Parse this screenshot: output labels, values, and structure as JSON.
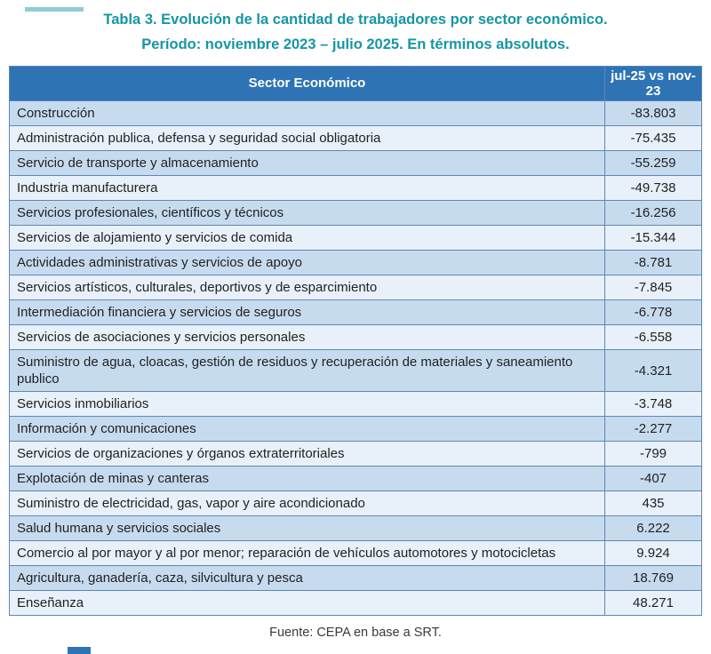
{
  "title": {
    "line1": "Tabla 3. Evolución de la cantidad de trabajadores por sector económico.",
    "line2": "Período: noviembre 2023 – julio 2025. En términos absolutos."
  },
  "table": {
    "header": {
      "sector": "Sector Económico",
      "value": "jul-25 vs nov-23"
    },
    "rows": [
      {
        "sector": "Construcción",
        "value": "-83.803"
      },
      {
        "sector": "Administración publica, defensa y seguridad social obligatoria",
        "value": "-75.435"
      },
      {
        "sector": "Servicio de transporte y almacenamiento",
        "value": "-55.259"
      },
      {
        "sector": "Industria manufacturera",
        "value": "-49.738"
      },
      {
        "sector": "Servicios profesionales, científicos y técnicos",
        "value": "-16.256"
      },
      {
        "sector": "Servicios de alojamiento y servicios de comida",
        "value": "-15.344"
      },
      {
        "sector": "Actividades administrativas y servicios de apoyo",
        "value": "-8.781"
      },
      {
        "sector": "Servicios artísticos, culturales, deportivos y de esparcimiento",
        "value": "-7.845"
      },
      {
        "sector": "Intermediación financiera y servicios de seguros",
        "value": "-6.778"
      },
      {
        "sector": "Servicios de asociaciones y servicios personales",
        "value": "-6.558"
      },
      {
        "sector": "Suministro de agua, cloacas, gestión de residuos y recuperación de materiales y saneamiento publico",
        "value": "-4.321"
      },
      {
        "sector": "Servicios inmobiliarios",
        "value": "-3.748"
      },
      {
        "sector": "Información y comunicaciones",
        "value": "-2.277"
      },
      {
        "sector": "Servicios de organizaciones y órganos extraterritoriales",
        "value": "-799"
      },
      {
        "sector": "Explotación de minas y canteras",
        "value": "-407"
      },
      {
        "sector": "Suministro de electricidad, gas, vapor y aire acondicionado",
        "value": "435"
      },
      {
        "sector": "Salud humana y servicios sociales",
        "value": "6.222"
      },
      {
        "sector": "Comercio al por mayor y al por menor; reparación de vehículos automotores y motocicletas",
        "value": "9.924"
      },
      {
        "sector": "Agricultura, ganadería, caza, silvicultura y pesca",
        "value": "18.769"
      },
      {
        "sector": "Enseñanza",
        "value": "48.271"
      }
    ]
  },
  "footer": {
    "source": "Fuente: CEPA en base a SRT."
  },
  "colors": {
    "title_text": "#1596A4",
    "header_bg": "#2E74B5",
    "header_text": "#FFFFFF",
    "band_dark": "#C7DBEF",
    "band_light": "#E8F1F9",
    "border": "#5E87B4",
    "body_text": "#222222",
    "source_text": "#3A3A3A"
  },
  "chart_data": {
    "type": "table",
    "title": "Tabla 3. Evolución de la cantidad de trabajadores por sector económico. Período: noviembre 2023 – julio 2025. En términos absolutos.",
    "columns": [
      "Sector Económico",
      "jul-25 vs nov-23"
    ],
    "rows": [
      [
        "Construcción",
        -83803
      ],
      [
        "Administración publica, defensa y seguridad social obligatoria",
        -75435
      ],
      [
        "Servicio de transporte y almacenamiento",
        -55259
      ],
      [
        "Industria manufacturera",
        -49738
      ],
      [
        "Servicios profesionales, científicos y técnicos",
        -16256
      ],
      [
        "Servicios de alojamiento y servicios de comida",
        -15344
      ],
      [
        "Actividades administrativas y servicios de apoyo",
        -8781
      ],
      [
        "Servicios artísticos, culturales, deportivos y de esparcimiento",
        -7845
      ],
      [
        "Intermediación financiera y servicios de seguros",
        -6778
      ],
      [
        "Servicios de asociaciones y servicios personales",
        -6558
      ],
      [
        "Suministro de agua, cloacas, gestión de residuos y recuperación de materiales y saneamiento publico",
        -4321
      ],
      [
        "Servicios inmobiliarios",
        -3748
      ],
      [
        "Información y comunicaciones",
        -2277
      ],
      [
        "Servicios de organizaciones y órganos extraterritoriales",
        -799
      ],
      [
        "Explotación de minas y canteras",
        -407
      ],
      [
        "Suministro de electricidad, gas, vapor y aire acondicionado",
        435
      ],
      [
        "Salud humana y servicios sociales",
        6222
      ],
      [
        "Comercio al por mayor y al por menor; reparación de vehículos automotores y motocicletas",
        9924
      ],
      [
        "Agricultura, ganadería, caza, silvicultura y pesca",
        18769
      ],
      [
        "Enseñanza",
        48271
      ]
    ],
    "source": "Fuente: CEPA en base a SRT.",
    "layout": {
      "banded_rows": true,
      "header_position": "top"
    }
  }
}
